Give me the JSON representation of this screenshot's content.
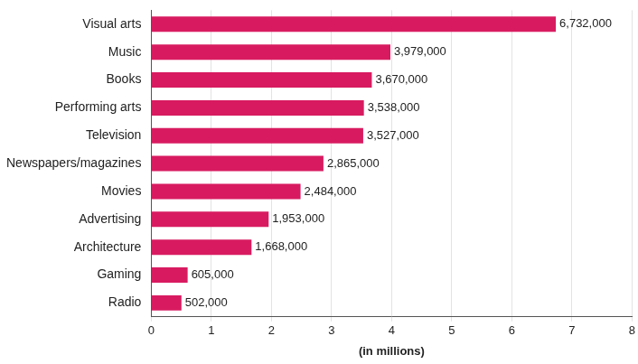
{
  "chart_data": {
    "type": "bar",
    "orientation": "horizontal",
    "categories": [
      "Visual arts",
      "Music",
      "Books",
      "Performing arts",
      "Television",
      "Newspapers/magazines",
      "Movies",
      "Advertising",
      "Architecture",
      "Gaming",
      "Radio"
    ],
    "values": [
      6.732,
      3.979,
      3.67,
      3.538,
      3.527,
      2.865,
      2.484,
      1.953,
      1.668,
      0.605,
      0.502
    ],
    "value_labels": [
      "6,732,000",
      "3,979,000",
      "3,670,000",
      "3,538,000",
      "3,527,000",
      "2,865,000",
      "2,484,000",
      "1,953,000",
      "1,668,000",
      "605,000",
      "502,000"
    ],
    "color": "#d81b60",
    "xlabel": "(in millions)",
    "xlim": [
      0,
      8
    ],
    "xticks": [
      0,
      1,
      2,
      3,
      4,
      5,
      6,
      7,
      8
    ],
    "grid": true,
    "data_labels": true
  }
}
